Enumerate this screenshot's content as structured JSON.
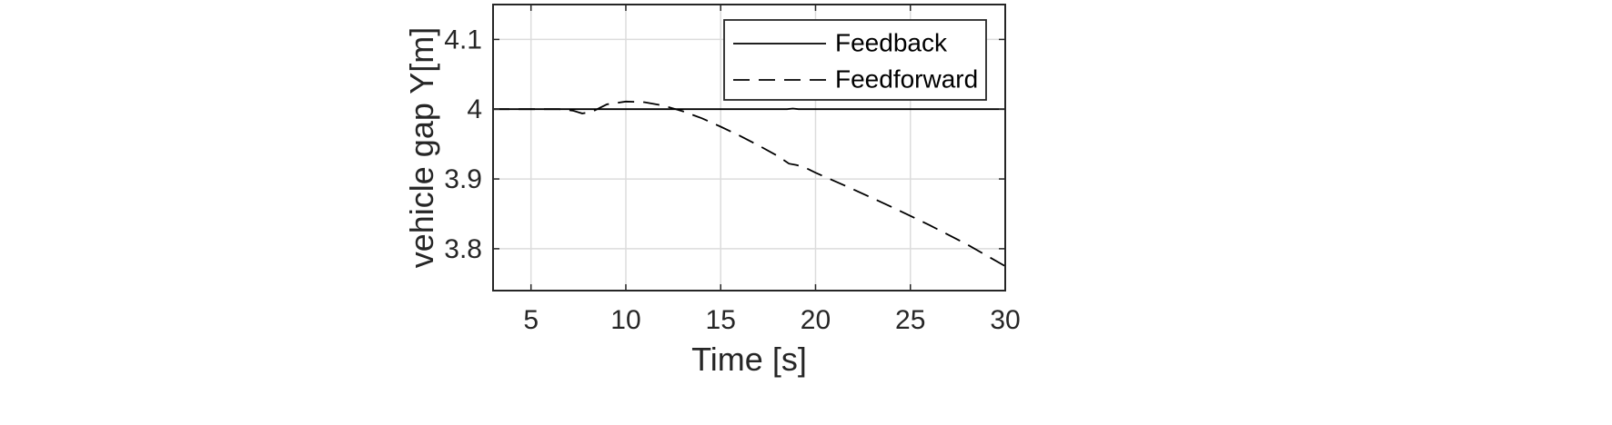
{
  "chart_data": {
    "type": "line",
    "title": "",
    "xlabel": "Time [s]",
    "ylabel": "vehicle gap Y[m]",
    "xlim": [
      3,
      30
    ],
    "ylim": [
      3.74,
      4.15
    ],
    "xticks": [
      5,
      10,
      15,
      20,
      25,
      30
    ],
    "yticks": [
      3.8,
      3.9,
      4,
      4.1
    ],
    "xtick_labels": [
      "5",
      "10",
      "15",
      "20",
      "25",
      "30"
    ],
    "ytick_labels": [
      "3.8",
      "3.9",
      "4",
      "4.1"
    ],
    "grid": true,
    "legend_position": "top-right",
    "series": [
      {
        "name": "Feedback",
        "line_style": "solid",
        "color": "#000000",
        "x": [
          3,
          5,
          7,
          10,
          15,
          18.5,
          18.8,
          19.1,
          20,
          25,
          30
        ],
        "y": [
          4,
          4,
          4,
          4,
          4,
          4,
          4.001,
          4,
          4,
          4,
          4
        ]
      },
      {
        "name": "Feedforward",
        "line_style": "dashed",
        "color": "#000000",
        "x": [
          3,
          6.5,
          7.2,
          7.7,
          8.2,
          9,
          10,
          11,
          12,
          13,
          14,
          15,
          16,
          17,
          18,
          18.6,
          19,
          19.4,
          20,
          22,
          24,
          26,
          28,
          30
        ],
        "y": [
          4,
          4,
          3.998,
          3.994,
          3.996,
          4.007,
          4.011,
          4.01,
          4.005,
          3.997,
          3.987,
          3.975,
          3.962,
          3.948,
          3.933,
          3.922,
          3.92,
          3.917,
          3.909,
          3.885,
          3.86,
          3.834,
          3.806,
          3.775
        ]
      }
    ]
  }
}
